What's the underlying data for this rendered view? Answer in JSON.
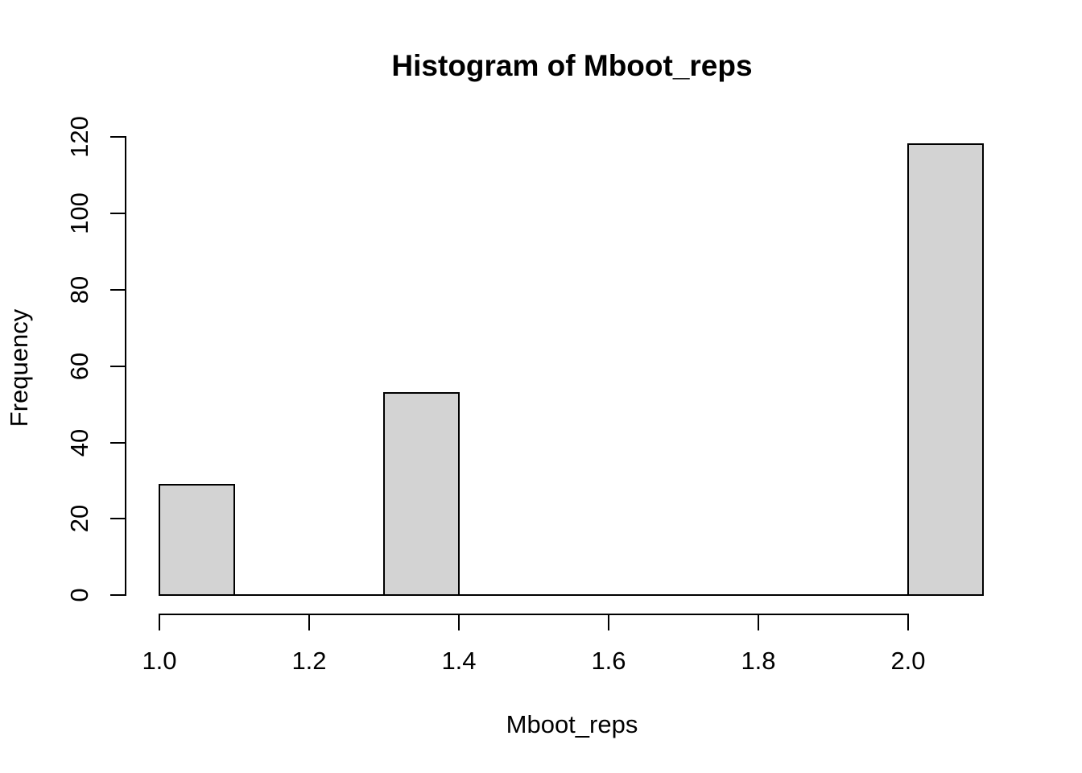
{
  "figure": {
    "background": "#ffffff",
    "text_color": "#000000"
  },
  "chart_data": {
    "type": "bar",
    "subtype": "histogram",
    "title": "Histogram of Mboot_reps",
    "xlabel": "Mboot_reps",
    "ylabel": "Frequency",
    "xlim": [
      1.0,
      2.1
    ],
    "ylim": [
      0,
      120
    ],
    "x_ticks": [
      1.0,
      1.2,
      1.4,
      1.6,
      1.8,
      2.0
    ],
    "x_tick_labels": [
      "1.0",
      "1.2",
      "1.4",
      "1.6",
      "1.8",
      "2.0"
    ],
    "y_ticks": [
      0,
      20,
      40,
      60,
      80,
      100,
      120
    ],
    "y_tick_labels": [
      "0",
      "20",
      "40",
      "60",
      "80",
      "100",
      "120"
    ],
    "bin_width": 0.1,
    "bins": [
      {
        "from": 1.0,
        "to": 1.1,
        "count": 29
      },
      {
        "from": 1.1,
        "to": 1.2,
        "count": 0
      },
      {
        "from": 1.2,
        "to": 1.3,
        "count": 0
      },
      {
        "from": 1.3,
        "to": 1.4,
        "count": 53
      },
      {
        "from": 1.4,
        "to": 1.5,
        "count": 0
      },
      {
        "from": 1.5,
        "to": 1.6,
        "count": 0
      },
      {
        "from": 1.6,
        "to": 1.7,
        "count": 0
      },
      {
        "from": 1.7,
        "to": 1.8,
        "count": 0
      },
      {
        "from": 1.8,
        "to": 1.9,
        "count": 0
      },
      {
        "from": 1.9,
        "to": 2.0,
        "count": 0
      },
      {
        "from": 2.0,
        "to": 2.1,
        "count": 118
      }
    ],
    "bar_fill": "#d3d3d3",
    "bar_border": "#000000",
    "axis_color": "#000000",
    "grid": false,
    "legend": false
  }
}
